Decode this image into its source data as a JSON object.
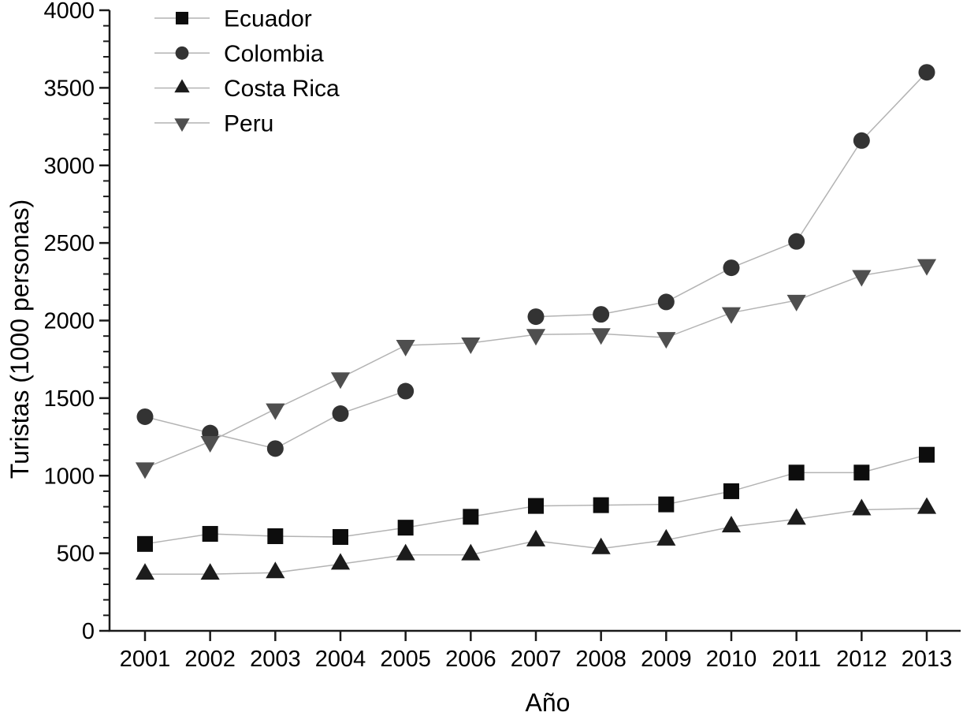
{
  "chart_data": {
    "type": "line",
    "title": "",
    "xlabel": "Año",
    "ylabel": "Turistas (1000 personas)",
    "x": [
      2001,
      2002,
      2003,
      2004,
      2005,
      2006,
      2007,
      2008,
      2009,
      2010,
      2011,
      2012,
      2013
    ],
    "series": [
      {
        "name": "Ecuador",
        "marker": "square",
        "color": "#0d0d0d",
        "values": [
          560,
          625,
          610,
          605,
          665,
          735,
          805,
          810,
          815,
          900,
          1020,
          1020,
          1135
        ]
      },
      {
        "name": "Colombia",
        "marker": "circle",
        "color": "#333333",
        "values": [
          1380,
          1275,
          1175,
          1400,
          1545,
          null,
          2025,
          2040,
          2120,
          2340,
          2510,
          3160,
          3600
        ]
      },
      {
        "name": "Costa Rica",
        "marker": "triangle-up",
        "color": "#1c1c1c",
        "values": [
          365,
          365,
          375,
          430,
          490,
          490,
          580,
          530,
          585,
          670,
          720,
          780,
          790
        ]
      },
      {
        "name": "Peru",
        "marker": "triangle-down",
        "color": "#4f4f4f",
        "values": [
          1050,
          1220,
          1430,
          1630,
          1840,
          1855,
          1910,
          1915,
          1890,
          2050,
          2130,
          2290,
          2360
        ]
      }
    ],
    "ylim": [
      0,
      4000
    ],
    "y_major_step": 500,
    "y_minor_step": 100,
    "y_tick_labels": [
      "0",
      "500",
      "1000",
      "1500",
      "2000",
      "2500",
      "3000",
      "3500",
      "4000"
    ],
    "x_tick_labels": [
      "2001",
      "2002",
      "2003",
      "2004",
      "2005",
      "2006",
      "2007",
      "2008",
      "2009",
      "2010",
      "2011",
      "2012",
      "2013"
    ],
    "grid": false,
    "legend_position": "top-left",
    "legend_entries": [
      "Ecuador",
      "Colombia",
      "Costa Rica",
      "Peru"
    ],
    "line_color": "#b3b3b3",
    "axis_color": "#1a1a1a",
    "text_color": "#000000",
    "background_color": "#ffffff"
  }
}
